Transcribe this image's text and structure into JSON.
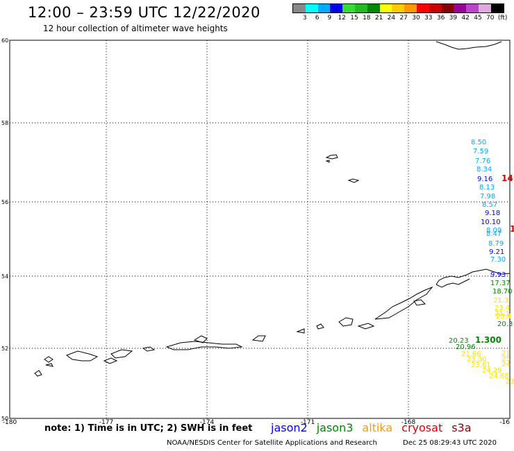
{
  "header": {
    "title": "12:00 – 23:59 UTC 12/22/2020",
    "subtitle": "12 hour collection of altimeter wave heights"
  },
  "legend": {
    "colors": [
      "#888888",
      "#00ffff",
      "#00aaff",
      "#0000ee",
      "#33dd33",
      "#22bb22",
      "#008800",
      "#ffff00",
      "#ffcc00",
      "#ff9900",
      "#ff0000",
      "#cc0000",
      "#880000",
      "#990099",
      "#bb44cc",
      "#ddaadd",
      "#000000"
    ],
    "labels": [
      "3",
      "6",
      "9",
      "12",
      "15",
      "18",
      "21",
      "24",
      "27",
      "30",
      "33",
      "36",
      "39",
      "42",
      "45",
      "70",
      "(ft)"
    ]
  },
  "map": {
    "lat_labels": [
      "60",
      "58",
      "56",
      "54",
      "52",
      "50"
    ],
    "lon_labels": [
      "-180",
      "-177",
      "-174",
      "-171",
      "-168",
      "-16"
    ],
    "grid": "dotted"
  },
  "wave_labels": [
    {
      "text": "8.50",
      "color": "#00aaff"
    },
    {
      "text": "7.59",
      "color": "#00aaff"
    },
    {
      "text": "7.76",
      "color": "#00aaff"
    },
    {
      "text": "8.34",
      "color": "#00aaff"
    },
    {
      "text": "9.16",
      "color": "#0000ee"
    },
    {
      "text": "14",
      "color": "#dd0000"
    },
    {
      "text": "8.13",
      "color": "#00aaff"
    },
    {
      "text": "7.98",
      "color": "#00aaff"
    },
    {
      "text": "8.57",
      "color": "#00aaff"
    },
    {
      "text": "9.18",
      "color": "#0000ee"
    },
    {
      "text": "10.10",
      "color": "#0000ee"
    },
    {
      "text": "8.09",
      "color": "#00aaff"
    },
    {
      "text": "8.47",
      "color": "#00aaff"
    },
    {
      "text": "1",
      "color": "#dd0000"
    },
    {
      "text": "8.79",
      "color": "#00aaff"
    },
    {
      "text": "9.21",
      "color": "#0000ee"
    },
    {
      "text": "7.30",
      "color": "#00aaff"
    },
    {
      "text": "9.93",
      "color": "#0000ee"
    },
    {
      "text": "17.37",
      "color": "#008800"
    },
    {
      "text": "18.70",
      "color": "#008800"
    },
    {
      "text": "21.3",
      "color": "#ffdd00"
    },
    {
      "text": "23.4",
      "color": "#ffdd00"
    },
    {
      "text": "23.4",
      "color": "#ffdd00"
    },
    {
      "text": "21.1",
      "color": "#ffdd00"
    },
    {
      "text": "20.3",
      "color": "#008800"
    },
    {
      "text": "20.23",
      "color": "#008800"
    },
    {
      "text": "1.300",
      "color": "#008800"
    },
    {
      "text": "20.96",
      "color": "#008800"
    },
    {
      "text": "21.66",
      "color": "#ffdd00"
    },
    {
      "text": "23.30",
      "color": "#ffdd00"
    },
    {
      "text": "23.61",
      "color": "#ffdd00"
    },
    {
      "text": "24.29",
      "color": "#ffdd00"
    },
    {
      "text": "24.68",
      "color": "#ffdd00"
    },
    {
      "text": "21",
      "color": "#ffdd00"
    },
    {
      "text": "24",
      "color": "#ffdd00"
    },
    {
      "text": "25",
      "color": "#ffdd00"
    },
    {
      "text": "23",
      "color": "#ffdd00"
    }
  ],
  "footer": {
    "note": "note: 1) Time is in UTC; 2) SWH is in feet",
    "satellites": [
      {
        "name": "jason2",
        "color": "#0000ee"
      },
      {
        "name": "jason3",
        "color": "#008800"
      },
      {
        "name": "altika",
        "color": "#ff9900"
      },
      {
        "name": "cryosat",
        "color": "#dd0000"
      },
      {
        "name": "s3a",
        "color": "#880000"
      }
    ],
    "credit": "NOAA/NESDIS Center for Satellite Applications and Research",
    "timestamp": "Dec 25 08:29:43 UTC 2020"
  }
}
